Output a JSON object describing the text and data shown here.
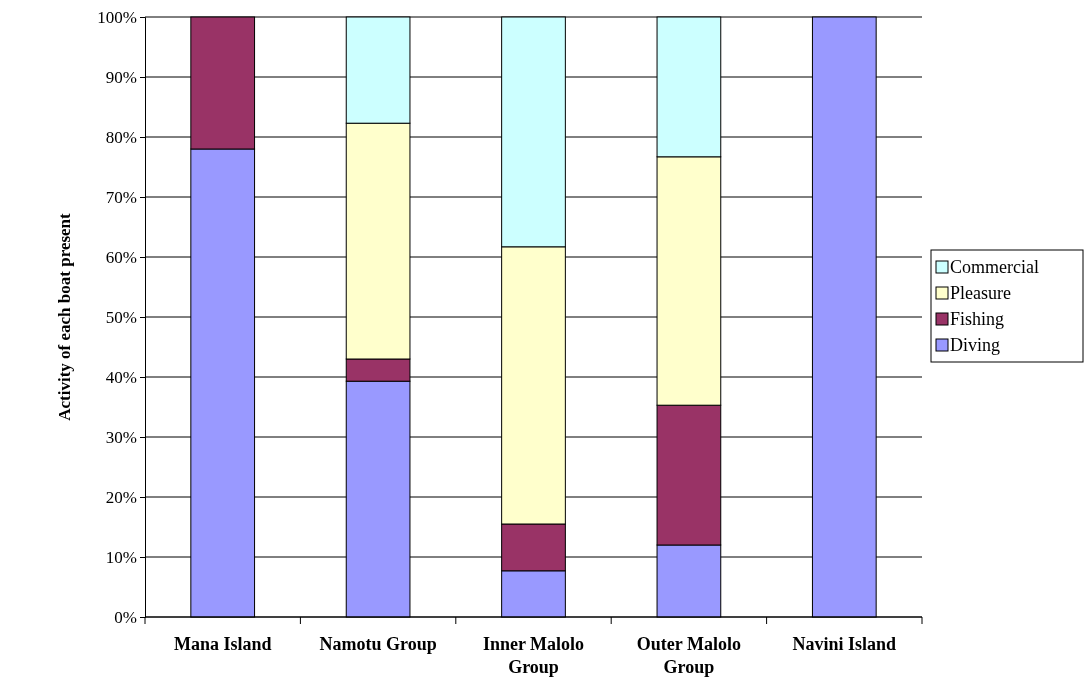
{
  "chart_data": {
    "type": "bar",
    "stacked": true,
    "ylabel": "Activity of each boat present",
    "categories": [
      "Mana Island",
      "Namotu Group",
      "Inner Malolo Group",
      "Outer Malolo Group",
      "Navini Island"
    ],
    "series": [
      {
        "name": "Diving",
        "color": "#9999ff",
        "values": [
          78,
          39.3,
          7.7,
          12,
          100
        ]
      },
      {
        "name": "Fishing",
        "color": "#993366",
        "values": [
          22,
          3.7,
          7.8,
          23.3,
          0
        ]
      },
      {
        "name": "Pleasure",
        "color": "#ffffcc",
        "values": [
          0,
          39.3,
          46.2,
          41.4,
          0
        ]
      },
      {
        "name": "Commercial",
        "color": "#ccffff",
        "values": [
          0,
          17.7,
          38.3,
          23.3,
          0
        ]
      }
    ],
    "ylim": [
      0,
      100
    ],
    "yticks": [
      {
        "value": 0,
        "label": "0%"
      },
      {
        "value": 10,
        "label": "10%"
      },
      {
        "value": 20,
        "label": "20%"
      },
      {
        "value": 30,
        "label": "30%"
      },
      {
        "value": 40,
        "label": "40%"
      },
      {
        "value": 50,
        "label": "50%"
      },
      {
        "value": 60,
        "label": "60%"
      },
      {
        "value": 70,
        "label": "70%"
      },
      {
        "value": 80,
        "label": "80%"
      },
      {
        "value": 90,
        "label": "90%"
      },
      {
        "value": 100,
        "label": "100%"
      }
    ],
    "grid": "y",
    "legend": "right"
  }
}
